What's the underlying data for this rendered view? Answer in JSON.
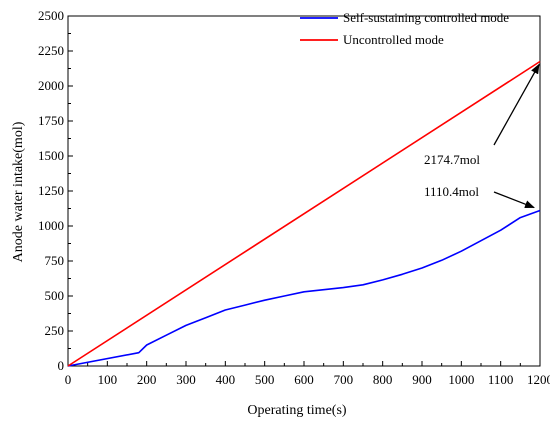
{
  "chart_data": {
    "type": "line",
    "title": "",
    "xlabel": "Operating time(s)",
    "ylabel": "Anode water intake(mol)",
    "xlim": [
      0,
      1200
    ],
    "ylim": [
      0,
      2500
    ],
    "xticks": [
      0,
      100,
      200,
      300,
      400,
      500,
      600,
      700,
      800,
      900,
      1000,
      1100,
      1200
    ],
    "yticks": [
      0,
      250,
      500,
      750,
      1000,
      1250,
      1500,
      1750,
      2000,
      2250,
      2500
    ],
    "grid": false,
    "legend_position": "top-right",
    "series": [
      {
        "name": "Self-sustaining controlled mode",
        "color": "#0000ff",
        "x": [
          0,
          180,
          200,
          250,
          300,
          350,
          400,
          450,
          500,
          550,
          600,
          650,
          700,
          750,
          800,
          850,
          900,
          950,
          1000,
          1050,
          1100,
          1150,
          1200
        ],
        "y": [
          0,
          95,
          150,
          220,
          290,
          345,
          400,
          435,
          470,
          500,
          530,
          545,
          560,
          580,
          615,
          655,
          700,
          755,
          820,
          895,
          970,
          1060,
          1110.4
        ]
      },
      {
        "name": "Uncontrolled mode",
        "color": "#ff0000",
        "x": [
          0,
          1200
        ],
        "y": [
          0,
          2174.7
        ]
      }
    ],
    "annotations": [
      {
        "text": "2174.7mol",
        "points_to": [
          1200,
          2174.7
        ]
      },
      {
        "text": "1110.4mol",
        "points_to": [
          1200,
          1110.4
        ]
      }
    ]
  }
}
